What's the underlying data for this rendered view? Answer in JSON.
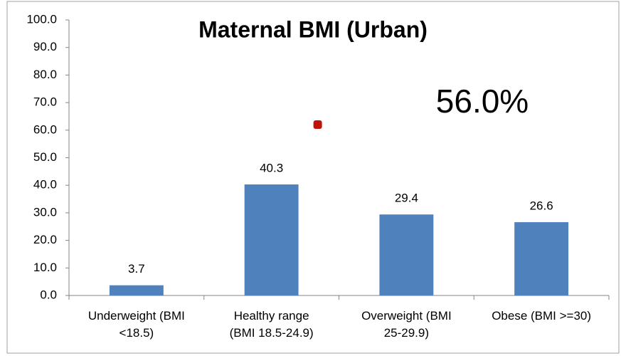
{
  "chart_data": {
    "type": "bar",
    "title": "Maternal BMI (Urban)",
    "annotation": "56.0%",
    "categories": [
      "Underweight (BMI\n<18.5)",
      "Healthy range\n(BMI 18.5-24.9)",
      "Overweight (BMI\n25-29.9)",
      "Obese (BMI >=30)"
    ],
    "series": [
      {
        "color": "#4f81bd",
        "values": [
          3.7,
          40.3,
          29.4,
          26.6
        ],
        "data_labels": true
      },
      {
        "color": "#c0140a",
        "values": [
          null,
          62,
          null,
          null
        ],
        "marker": "square"
      }
    ],
    "ylim": [
      0,
      100
    ],
    "yticks": [
      {
        "value": 0,
        "label": "0.0"
      },
      {
        "value": 10,
        "label": "10.0"
      },
      {
        "value": 20,
        "label": "20.0"
      },
      {
        "value": 30,
        "label": "30.0"
      },
      {
        "value": 40,
        "label": "40.0"
      },
      {
        "value": 50,
        "label": "50.0"
      },
      {
        "value": 60,
        "label": "60.0"
      },
      {
        "value": 70,
        "label": "70.0"
      },
      {
        "value": 80,
        "label": "80.0"
      },
      {
        "value": 90,
        "label": "90.0"
      },
      {
        "value": 100,
        "label": "100.0"
      }
    ],
    "grid": false
  }
}
